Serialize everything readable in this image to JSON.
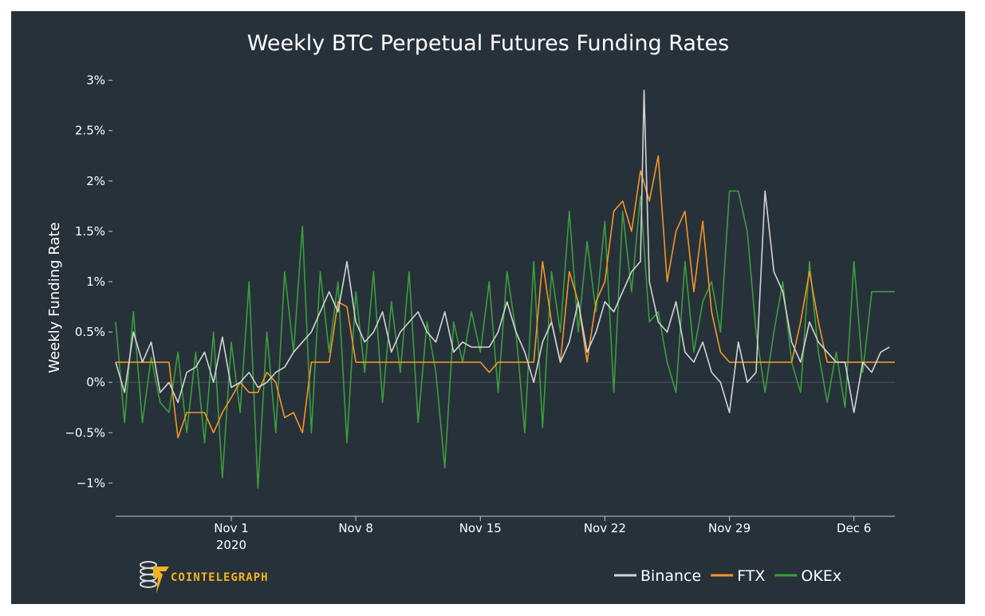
{
  "chart_data": {
    "type": "line",
    "title": "Weekly BTC Perpetual Futures Funding Rates",
    "xlabel": "",
    "ylabel": "Weekly Funding Rate",
    "ylim": [
      -1.33,
      3.1
    ],
    "xlim": [
      -5.5,
      38.3
    ],
    "x_ticks": [
      {
        "value": 1,
        "label": "Nov 1",
        "sublabel": "2020"
      },
      {
        "value": 8,
        "label": "Nov 8",
        "sublabel": ""
      },
      {
        "value": 15,
        "label": "Nov 15",
        "sublabel": ""
      },
      {
        "value": 22,
        "label": "Nov 22",
        "sublabel": ""
      },
      {
        "value": 29,
        "label": "Nov 29",
        "sublabel": ""
      },
      {
        "value": 36,
        "label": "Dec 6",
        "sublabel": ""
      }
    ],
    "y_ticks": [
      {
        "value": 3,
        "label": "3%"
      },
      {
        "value": 2.5,
        "label": "2.5%"
      },
      {
        "value": 2,
        "label": "2%"
      },
      {
        "value": 1.5,
        "label": "1.5%"
      },
      {
        "value": 1,
        "label": "1%"
      },
      {
        "value": 0.5,
        "label": "0.5%"
      },
      {
        "value": 0,
        "label": "0%"
      },
      {
        "value": -0.5,
        "label": "−0.5%"
      },
      {
        "value": -1,
        "label": "−1%"
      }
    ],
    "x_unit": "days relative to Oct 31, 2020",
    "legend_position": "bottom-right",
    "series": [
      {
        "name": "Binance",
        "color": "#d3d3d3",
        "x": [
          -5.5,
          -5,
          -4.5,
          -4,
          -3.5,
          -3,
          -2.5,
          -2,
          -1.5,
          -1,
          -0.5,
          0,
          0.5,
          1,
          1.5,
          2,
          2.5,
          3,
          3.5,
          4,
          4.5,
          5,
          5.5,
          6,
          6.5,
          7,
          7.5,
          8,
          8.5,
          9,
          9.5,
          10,
          10.5,
          11,
          11.5,
          12,
          12.5,
          13,
          13.5,
          14,
          14.5,
          15,
          15.5,
          16,
          16.5,
          17,
          17.5,
          18,
          18.5,
          19,
          19.5,
          20,
          20.5,
          21,
          21.5,
          22,
          22.5,
          23,
          23.5,
          24,
          24.2,
          24.5,
          25,
          25.5,
          26,
          26.5,
          27,
          27.5,
          28,
          28.5,
          29,
          29.5,
          30,
          30.5,
          31,
          31.5,
          32,
          32.5,
          33,
          33.5,
          34,
          34.5,
          35,
          35.5,
          36,
          36.5,
          37,
          37.5,
          38
        ],
        "y": [
          0.2,
          -0.1,
          0.5,
          0.2,
          0.4,
          -0.1,
          0,
          -0.2,
          0.1,
          0.15,
          0.3,
          0,
          0.45,
          -0.05,
          0,
          0.1,
          -0.05,
          0,
          0.1,
          0.15,
          0.3,
          0.4,
          0.5,
          0.7,
          0.9,
          0.7,
          1.2,
          0.6,
          0.4,
          0.5,
          0.7,
          0.3,
          0.5,
          0.6,
          0.7,
          0.5,
          0.4,
          0.7,
          0.3,
          0.4,
          0.35,
          0.35,
          0.35,
          0.5,
          0.8,
          0.5,
          0.3,
          0,
          0.4,
          0.6,
          0.2,
          0.4,
          0.8,
          0.3,
          0.5,
          0.8,
          0.7,
          0.9,
          1.1,
          1.2,
          2.9,
          1.0,
          0.6,
          0.5,
          0.8,
          0.3,
          0.2,
          0.4,
          0.1,
          0,
          -0.3,
          0.4,
          0,
          0.1,
          1.9,
          1.1,
          0.9,
          0.4,
          0.2,
          0.6,
          0.4,
          0.3,
          0.2,
          0.2,
          -0.3,
          0.2,
          0.1,
          0.3,
          0.35
        ]
      },
      {
        "name": "FTX",
        "color": "#f39625",
        "x": [
          -5.5,
          -4.5,
          -3.5,
          -2.5,
          -2,
          -1.5,
          -1,
          -0.5,
          0,
          0.5,
          1,
          1.5,
          2,
          2.5,
          3,
          3.5,
          4,
          4.5,
          5,
          5.5,
          6,
          6.5,
          7,
          7.5,
          8,
          8.5,
          9,
          9.5,
          10,
          10.5,
          11,
          11.5,
          12,
          12.5,
          13,
          13.5,
          14,
          14.5,
          15,
          15.5,
          16,
          16.5,
          17,
          17.5,
          18,
          18.5,
          19,
          19.5,
          20,
          20.5,
          21,
          21.5,
          22,
          22.5,
          23,
          23.5,
          24,
          24.5,
          25,
          25.5,
          26,
          26.5,
          27,
          27.5,
          28,
          28.5,
          29,
          29.5,
          30,
          30.5,
          31,
          31.5,
          32,
          32.5,
          33,
          33.5,
          34,
          34.5,
          35,
          35.5,
          36,
          36.5,
          37,
          37.5,
          38.3
        ],
        "y": [
          0.2,
          0.2,
          0.2,
          0.2,
          -0.55,
          -0.3,
          -0.3,
          -0.3,
          -0.5,
          -0.3,
          -0.15,
          0,
          -0.1,
          -0.1,
          0.1,
          0,
          -0.35,
          -0.3,
          -0.5,
          0.2,
          0.2,
          0.2,
          0.8,
          0.75,
          0.2,
          0.2,
          0.2,
          0.2,
          0.2,
          0.2,
          0.2,
          0.2,
          0.2,
          0.2,
          0.2,
          0.2,
          0.2,
          0.2,
          0.2,
          0.1,
          0.2,
          0.2,
          0.2,
          0.2,
          0.2,
          1.2,
          0.6,
          0.2,
          1.1,
          0.8,
          0.2,
          0.8,
          1.0,
          1.7,
          1.8,
          1.5,
          2.1,
          1.8,
          2.25,
          1.0,
          1.5,
          1.7,
          0.9,
          1.6,
          0.7,
          0.3,
          0.2,
          0.2,
          0.2,
          0.2,
          0.2,
          0.2,
          0.2,
          0.2,
          0.6,
          1.1,
          0.6,
          0.2,
          0.2,
          0.2,
          0.2,
          0.2,
          0.2,
          0.2,
          0.2
        ]
      },
      {
        "name": "OKEx",
        "color": "#3a9e3a",
        "x": [
          -5.5,
          -5,
          -4.5,
          -4,
          -3.5,
          -3,
          -2.5,
          -2,
          -1.5,
          -1,
          -0.5,
          0,
          0.5,
          1,
          1.5,
          2,
          2.5,
          3,
          3.5,
          4,
          4.5,
          5,
          5.5,
          6,
          6.5,
          7,
          7.5,
          8,
          8.5,
          9,
          9.5,
          10,
          10.5,
          11,
          11.5,
          12,
          12.5,
          13,
          13.5,
          14,
          14.5,
          15,
          15.5,
          16,
          16.5,
          17,
          17.5,
          18,
          18.5,
          19,
          19.5,
          20,
          20.5,
          21,
          21.5,
          22,
          22.5,
          23,
          23.5,
          24,
          24.5,
          25,
          25.5,
          26,
          26.5,
          27,
          27.5,
          28,
          28.5,
          29,
          29.5,
          30,
          30.5,
          31,
          31.5,
          32,
          32.5,
          33,
          33.5,
          34,
          34.5,
          35,
          35.5,
          36,
          36.5,
          37,
          37.5,
          38.3
        ],
        "y": [
          0.6,
          -0.4,
          0.7,
          -0.4,
          0.25,
          -0.2,
          -0.3,
          0.3,
          -0.5,
          0.3,
          -0.6,
          0.5,
          -0.95,
          0.4,
          -0.3,
          1.0,
          -1.05,
          0.5,
          -0.5,
          1.1,
          0.3,
          1.55,
          -0.5,
          1.1,
          0.3,
          1.0,
          -0.6,
          0.9,
          0.1,
          1.1,
          -0.2,
          0.8,
          0.1,
          1.1,
          -0.4,
          0.6,
          0.1,
          -0.85,
          0.6,
          0.2,
          0.7,
          0.3,
          1.0,
          -0.1,
          1.1,
          0.5,
          -0.5,
          1.2,
          -0.45,
          1.1,
          0.5,
          1.7,
          0.5,
          1.4,
          0.7,
          1.6,
          -0.1,
          1.7,
          0.9,
          1.85,
          0.6,
          0.7,
          0.2,
          -0.1,
          1.2,
          0.3,
          0.8,
          1.0,
          0.5,
          1.9,
          1.9,
          1.5,
          0.5,
          -0.1,
          0.5,
          1.0,
          0.2,
          -0.1,
          1.2,
          0.3,
          -0.2,
          0.3,
          -0.25,
          1.2,
          0.1,
          0.9,
          0.9,
          0.9
        ]
      }
    ]
  },
  "branding": {
    "name": "COINTELEGRAPH"
  }
}
